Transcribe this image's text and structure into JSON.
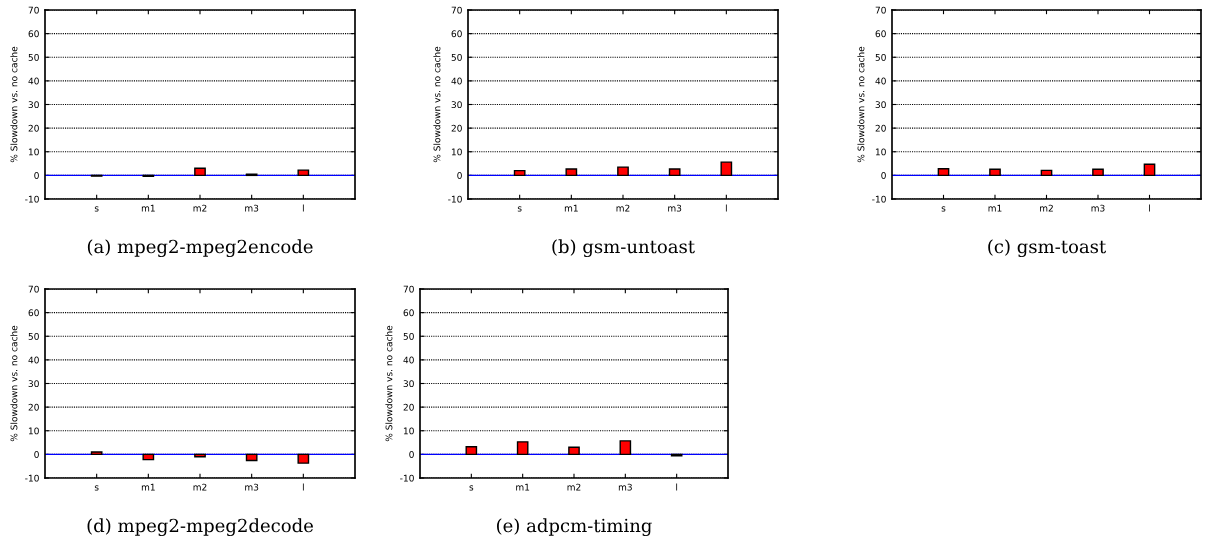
{
  "chart_data": [
    {
      "type": "bar",
      "title": "(a) mpeg2-mpeg2encode",
      "ylabel": "% Slowdown vs. no cache",
      "categories": [
        "s",
        "m1",
        "m2",
        "m3",
        "l"
      ],
      "values": [
        -0.3,
        -0.4,
        3,
        0.5,
        2.2
      ],
      "color": "#ff0000",
      "ylim": [
        -10,
        70
      ],
      "yticks": [
        -10,
        0,
        10,
        20,
        30,
        40,
        50,
        60,
        70
      ],
      "grid": "y",
      "ref_lines": [
        {
          "axis": "y",
          "value": 0,
          "color": "#0000ff"
        }
      ]
    },
    {
      "type": "bar",
      "title": "(b) gsm-untoast",
      "ylabel": "% Slowdown vs. no cache",
      "categories": [
        "s",
        "m1",
        "m2",
        "m3",
        "l"
      ],
      "values": [
        2,
        2.7,
        3.5,
        2.7,
        5.6
      ],
      "color": "#ff0000",
      "ylim": [
        -10,
        70
      ],
      "yticks": [
        -10,
        0,
        10,
        20,
        30,
        40,
        50,
        60,
        70
      ],
      "grid": "y",
      "ref_lines": [
        {
          "axis": "y",
          "value": 0,
          "color": "#0000ff"
        }
      ]
    },
    {
      "type": "bar",
      "title": "(c) gsm-toast",
      "ylabel": "% Slowdown vs. no cache",
      "categories": [
        "s",
        "m1",
        "m2",
        "m3",
        "l"
      ],
      "values": [
        2.8,
        2.6,
        2.1,
        2.6,
        4.7
      ],
      "color": "#ff0000",
      "ylim": [
        -10,
        70
      ],
      "yticks": [
        -10,
        0,
        10,
        20,
        30,
        40,
        50,
        60,
        70
      ],
      "grid": "y",
      "ref_lines": [
        {
          "axis": "y",
          "value": 0,
          "color": "#0000ff"
        }
      ]
    },
    {
      "type": "bar",
      "title": "(d) mpeg2-mpeg2decode",
      "ylabel": "% Slowdown vs. no cache",
      "categories": [
        "s",
        "m1",
        "m2",
        "m3",
        "l"
      ],
      "values": [
        1,
        -2.2,
        -1,
        -2.6,
        -3.7
      ],
      "color": "#ff0000",
      "ylim": [
        -10,
        70
      ],
      "yticks": [
        -10,
        0,
        10,
        20,
        30,
        40,
        50,
        60,
        70
      ],
      "grid": "y",
      "ref_lines": [
        {
          "axis": "y",
          "value": 0,
          "color": "#0000ff"
        }
      ]
    },
    {
      "type": "bar",
      "title": "(e) adpcm-timing",
      "ylabel": "% Slowdown vs. no cache",
      "categories": [
        "s",
        "m1",
        "m2",
        "m3",
        "l"
      ],
      "values": [
        3.2,
        5.3,
        3,
        5.7,
        -0.6
      ],
      "color": "#ff0000",
      "ylim": [
        -10,
        70
      ],
      "yticks": [
        -10,
        0,
        10,
        20,
        30,
        40,
        50,
        60,
        70
      ],
      "grid": "y",
      "ref_lines": [
        {
          "axis": "y",
          "value": 0,
          "color": "#0000ff"
        }
      ]
    }
  ]
}
